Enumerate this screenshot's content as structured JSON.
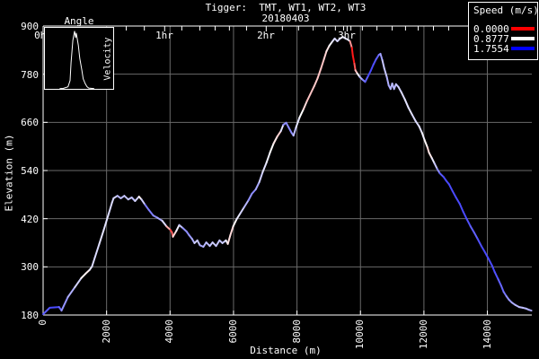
{
  "window": {
    "background": "#000000",
    "foreground": "#ffffff"
  },
  "title": {
    "line1": "Tigger:  TMT, WT1, WT2, WT3",
    "line2": "20180403"
  },
  "colors": {
    "background": "#000000",
    "text": "#ffffff",
    "grid": "#6a6a6a",
    "border": "#ffffff",
    "speed_min": "#ff0000",
    "speed_mid": "#ffffff",
    "speed_max": "#0000ff"
  },
  "chart_data": {
    "type": "line",
    "title": "Tigger:  TMT, WT1, WT2, WT3",
    "subtitle": "20180403",
    "xlabel": "Distance (m)",
    "ylabel": "Elevation (m)",
    "xlim": [
      0,
      15400
    ],
    "ylim": [
      180,
      900
    ],
    "x_ticks": [
      0,
      2000,
      4000,
      6000,
      8000,
      10000,
      12000,
      14000
    ],
    "y_ticks": [
      180,
      300,
      420,
      540,
      660,
      780,
      900
    ],
    "grid": true,
    "legend": {
      "title": "Speed (m/s)",
      "position": "top-right",
      "entries": [
        {
          "label": "0.0000",
          "value": 0.0,
          "color": "#ff0000"
        },
        {
          "label": "0.8777",
          "value": 0.8777,
          "color": "#ffffff"
        },
        {
          "label": "1.7554",
          "value": 1.7554,
          "color": "#0000ff"
        }
      ]
    },
    "colormap": {
      "min_value": 0.0,
      "mid_value": 0.8777,
      "max_value": 1.7554,
      "min_color": "#ff0000",
      "mid_color": "#ffffff",
      "max_color": "#0000ff"
    },
    "time_marks": {
      "hours": [
        {
          "label": "0hr",
          "distance_m": 0
        },
        {
          "label": "1hr",
          "distance_m": 3830
        },
        {
          "label": "2hr",
          "distance_m": 7030
        },
        {
          "label": "3hr",
          "distance_m": 9580
        }
      ],
      "minor_distance_m": [
        2620,
        3190,
        4370,
        4940,
        5420,
        5870,
        6410,
        7540,
        8050,
        8510,
        8900,
        9210,
        9470,
        9700,
        10060,
        10520,
        11000,
        11420,
        11820,
        12300,
        12780
      ]
    },
    "inset": {
      "title": "Angle",
      "side_label": "Velocity",
      "curve_norm": [
        [
          0.22,
          0.99
        ],
        [
          0.27,
          0.985
        ],
        [
          0.34,
          0.96
        ],
        [
          0.37,
          0.86
        ],
        [
          0.385,
          0.57
        ],
        [
          0.41,
          0.21
        ],
        [
          0.435,
          0.06
        ],
        [
          0.45,
          0.17
        ],
        [
          0.46,
          0.09
        ],
        [
          0.49,
          0.29
        ],
        [
          0.51,
          0.5
        ],
        [
          0.54,
          0.69
        ],
        [
          0.56,
          0.83
        ],
        [
          0.59,
          0.91
        ],
        [
          0.615,
          0.96
        ],
        [
          0.64,
          0.98
        ],
        [
          0.72,
          0.99
        ]
      ]
    },
    "series": [
      {
        "name": "elevation-profile",
        "point_format": [
          "distance_m",
          "elevation_m",
          "speed_mps"
        ],
        "points": [
          [
            0,
            182,
            1.4
          ],
          [
            210,
            198,
            1.5
          ],
          [
            500,
            200,
            1.5
          ],
          [
            580,
            191,
            1.3
          ],
          [
            780,
            225,
            1.2
          ],
          [
            1000,
            249,
            1.1
          ],
          [
            1200,
            272,
            0.95
          ],
          [
            1340,
            283,
            0.75
          ],
          [
            1460,
            292,
            0.9
          ],
          [
            1540,
            301,
            1.0
          ],
          [
            1630,
            323,
            1.0
          ],
          [
            1770,
            357,
            1.0
          ],
          [
            1910,
            392,
            0.95
          ],
          [
            2050,
            428,
            1.0
          ],
          [
            2170,
            460,
            1.0
          ],
          [
            2220,
            471,
            1.0
          ],
          [
            2340,
            477,
            1.05
          ],
          [
            2450,
            471,
            1.2
          ],
          [
            2560,
            477,
            1.0
          ],
          [
            2680,
            468,
            1.15
          ],
          [
            2790,
            473,
            1.0
          ],
          [
            2900,
            464,
            1.2
          ],
          [
            3020,
            475,
            0.85
          ],
          [
            3100,
            468,
            0.8
          ],
          [
            3210,
            455,
            1.3
          ],
          [
            3330,
            442,
            1.35
          ],
          [
            3470,
            428,
            1.3
          ],
          [
            3610,
            422,
            1.25
          ],
          [
            3750,
            415,
            1.1
          ],
          [
            3890,
            401,
            0.9
          ],
          [
            4010,
            392,
            0.3
          ],
          [
            4060,
            386,
            0.12
          ],
          [
            4090,
            375,
            0.6
          ],
          [
            4200,
            390,
            0.9
          ],
          [
            4290,
            404,
            0.95
          ],
          [
            4400,
            397,
            1.2
          ],
          [
            4520,
            388,
            1.3
          ],
          [
            4600,
            379,
            1.25
          ],
          [
            4690,
            370,
            1.2
          ],
          [
            4770,
            359,
            1.1
          ],
          [
            4860,
            366,
            1.0
          ],
          [
            4940,
            354,
            1.15
          ],
          [
            5050,
            350,
            1.2
          ],
          [
            5140,
            361,
            1.05
          ],
          [
            5250,
            352,
            1.15
          ],
          [
            5340,
            361,
            1.0
          ],
          [
            5450,
            352,
            1.1
          ],
          [
            5560,
            366,
            1.05
          ],
          [
            5650,
            359,
            1.1
          ],
          [
            5760,
            366,
            1.0
          ],
          [
            5820,
            357,
            0.85
          ],
          [
            5900,
            379,
            0.7
          ],
          [
            5990,
            401,
            0.8
          ],
          [
            6100,
            419,
            0.9
          ],
          [
            6210,
            433,
            1.0
          ],
          [
            6330,
            448,
            1.05
          ],
          [
            6470,
            466,
            1.2
          ],
          [
            6580,
            482,
            1.3
          ],
          [
            6700,
            493,
            1.25
          ],
          [
            6810,
            511,
            1.1
          ],
          [
            6920,
            536,
            1.0
          ],
          [
            7040,
            560,
            0.95
          ],
          [
            7150,
            585,
            0.9
          ],
          [
            7260,
            607,
            0.85
          ],
          [
            7380,
            625,
            0.75
          ],
          [
            7490,
            638,
            0.7
          ],
          [
            7570,
            654,
            1.25
          ],
          [
            7660,
            659,
            1.3
          ],
          [
            7740,
            647,
            1.25
          ],
          [
            7830,
            634,
            1.3
          ],
          [
            7890,
            627,
            1.2
          ],
          [
            7970,
            647,
            1.0
          ],
          [
            8080,
            672,
            0.95
          ],
          [
            8200,
            692,
            0.8
          ],
          [
            8310,
            712,
            0.7
          ],
          [
            8420,
            730,
            0.65
          ],
          [
            8540,
            750,
            0.7
          ],
          [
            8650,
            770,
            0.7
          ],
          [
            8760,
            795,
            0.65
          ],
          [
            8850,
            817,
            0.7
          ],
          [
            8930,
            837,
            0.75
          ],
          [
            9020,
            851,
            0.85
          ],
          [
            9100,
            860,
            0.95
          ],
          [
            9190,
            869,
            1.0
          ],
          [
            9270,
            862,
            1.05
          ],
          [
            9360,
            869,
            1.0
          ],
          [
            9440,
            873,
            0.95
          ],
          [
            9530,
            869,
            1.0
          ],
          [
            9610,
            866,
            0.95
          ],
          [
            9670,
            862,
            0.9
          ],
          [
            9730,
            846,
            0.12
          ],
          [
            9760,
            826,
            0.06
          ],
          [
            9810,
            806,
            0.1
          ],
          [
            9840,
            790,
            0.5
          ],
          [
            9900,
            782,
            0.8
          ],
          [
            9980,
            773,
            1.05
          ],
          [
            10070,
            766,
            1.25
          ],
          [
            10150,
            761,
            1.35
          ],
          [
            10240,
            775,
            1.5
          ],
          [
            10320,
            788,
            1.5
          ],
          [
            10410,
            804,
            1.5
          ],
          [
            10490,
            817,
            1.45
          ],
          [
            10580,
            828,
            1.4
          ],
          [
            10630,
            831,
            1.3
          ],
          [
            10690,
            815,
            1.1
          ],
          [
            10750,
            795,
            1.05
          ],
          [
            10830,
            773,
            1.1
          ],
          [
            10890,
            752,
            1.2
          ],
          [
            10950,
            743,
            1.15
          ],
          [
            11000,
            757,
            1.1
          ],
          [
            11060,
            743,
            1.15
          ],
          [
            11120,
            755,
            1.1
          ],
          [
            11200,
            748,
            1.05
          ],
          [
            11290,
            735,
            1.0
          ],
          [
            11400,
            717,
            1.0
          ],
          [
            11510,
            697,
            0.95
          ],
          [
            11630,
            679,
            1.0
          ],
          [
            11740,
            663,
            1.0
          ],
          [
            11850,
            650,
            1.0
          ],
          [
            11940,
            634,
            0.95
          ],
          [
            12020,
            616,
            0.9
          ],
          [
            12110,
            598,
            0.8
          ],
          [
            12160,
            585,
            0.7
          ],
          [
            12250,
            571,
            0.9
          ],
          [
            12330,
            558,
            1.0
          ],
          [
            12420,
            544,
            1.15
          ],
          [
            12500,
            533,
            1.4
          ],
          [
            12620,
            524,
            1.5
          ],
          [
            12700,
            515,
            1.5
          ],
          [
            12790,
            506,
            1.5
          ],
          [
            12900,
            489,
            1.5
          ],
          [
            13010,
            473,
            1.5
          ],
          [
            13130,
            457,
            1.5
          ],
          [
            13240,
            437,
            1.5
          ],
          [
            13350,
            419,
            1.5
          ],
          [
            13470,
            401,
            1.45
          ],
          [
            13580,
            386,
            1.4
          ],
          [
            13690,
            370,
            1.45
          ],
          [
            13810,
            352,
            1.5
          ],
          [
            13920,
            337,
            1.5
          ],
          [
            14030,
            321,
            1.5
          ],
          [
            14150,
            303,
            1.5
          ],
          [
            14230,
            287,
            1.5
          ],
          [
            14340,
            269,
            1.45
          ],
          [
            14430,
            254,
            1.4
          ],
          [
            14510,
            238,
            1.4
          ],
          [
            14600,
            227,
            1.3
          ],
          [
            14680,
            218,
            1.25
          ],
          [
            14770,
            211,
            1.2
          ],
          [
            14880,
            205,
            1.15
          ],
          [
            15000,
            200,
            1.1
          ],
          [
            15110,
            198,
            1.1
          ],
          [
            15220,
            196,
            1.1
          ],
          [
            15310,
            193,
            1.15
          ],
          [
            15390,
            191,
            1.2
          ]
        ]
      }
    ]
  }
}
